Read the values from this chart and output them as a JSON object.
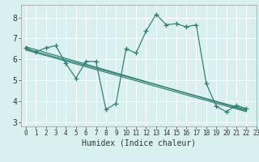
{
  "title": "",
  "xlabel": "Humidex (Indice chaleur)",
  "bg_color": "#d8f0f0",
  "line_color": "#2e7d6e",
  "grid_color": "#ffffff",
  "grid_minor_color": "#f0c8c8",
  "xlim": [
    -0.5,
    23
  ],
  "ylim": [
    2.8,
    8.6
  ],
  "yticks": [
    3,
    4,
    5,
    6,
    7,
    8
  ],
  "xticks": [
    0,
    1,
    2,
    3,
    4,
    5,
    6,
    7,
    8,
    9,
    10,
    11,
    12,
    13,
    14,
    15,
    16,
    17,
    18,
    19,
    20,
    21,
    22,
    23
  ],
  "series1_x": [
    0,
    1,
    2,
    3,
    4,
    5,
    6,
    7,
    8,
    9,
    10,
    11,
    12,
    13,
    14,
    15,
    16,
    17,
    18,
    19,
    20,
    21,
    22
  ],
  "series1_y": [
    6.55,
    6.35,
    6.55,
    6.65,
    5.8,
    5.1,
    5.9,
    5.9,
    3.6,
    3.9,
    6.5,
    6.3,
    7.35,
    8.15,
    7.65,
    7.7,
    7.55,
    7.65,
    4.85,
    3.75,
    3.5,
    3.8,
    3.65
  ],
  "trend1_x": [
    0,
    22
  ],
  "trend1_y": [
    6.6,
    3.55
  ],
  "trend2_x": [
    0,
    22
  ],
  "trend2_y": [
    6.5,
    3.6
  ],
  "trend3_x": [
    0,
    22
  ],
  "trend3_y": [
    6.45,
    3.5
  ]
}
